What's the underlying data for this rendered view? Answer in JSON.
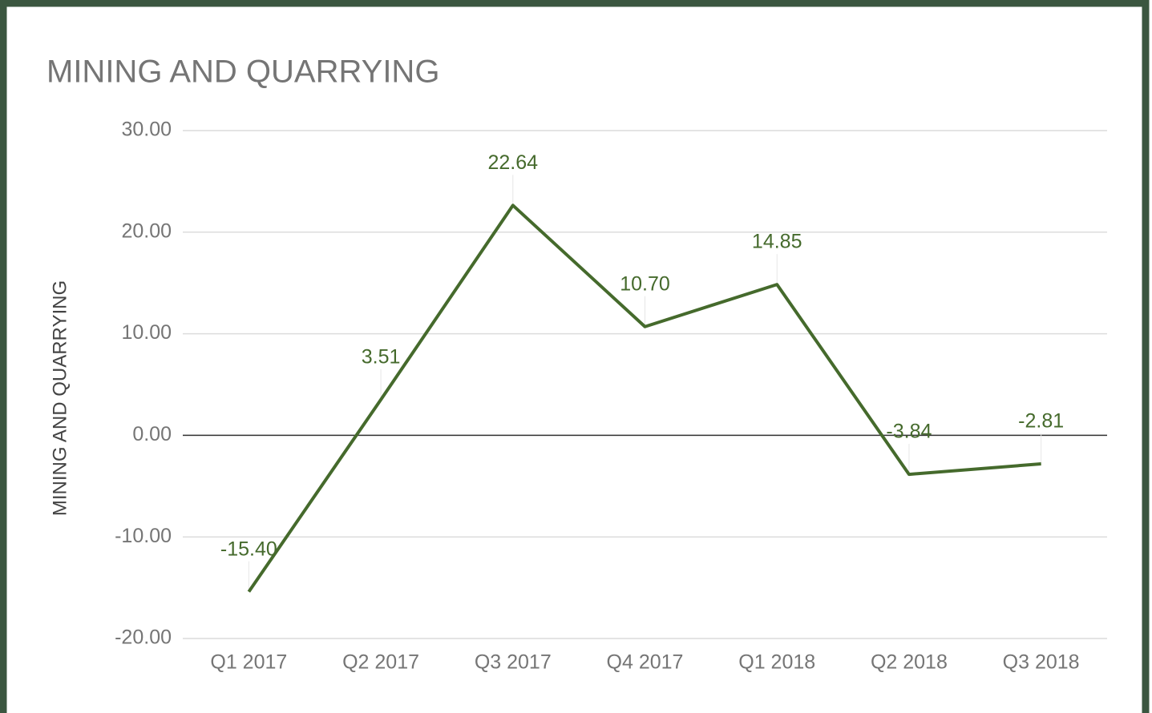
{
  "chart_data": {
    "type": "line",
    "title": "MINING AND QUARRYING",
    "y_label": "MINING AND QUARRYING",
    "categories": [
      "Q1 2017",
      "Q2 2017",
      "Q3 2017",
      "Q4 2017",
      "Q1 2018",
      "Q2 2018",
      "Q3 2018"
    ],
    "series": [
      {
        "name": "MINING AND QUARRYING",
        "color": "#456a2c",
        "values": [
          -15.4,
          3.51,
          22.64,
          10.7,
          14.85,
          -3.84,
          -2.81
        ],
        "value_labels": [
          "-15.40",
          "3.51",
          "22.64",
          "10.70",
          "14.85",
          "-3.84",
          "-2.81"
        ]
      }
    ],
    "ylim": [
      -20,
      30
    ],
    "yticks": [
      {
        "value": -20,
        "label": "-20.00"
      },
      {
        "value": -10,
        "label": "-10.00"
      },
      {
        "value": 0,
        "label": "0.00"
      },
      {
        "value": 10,
        "label": "10.00"
      },
      {
        "value": 20,
        "label": "20.00"
      },
      {
        "value": 30,
        "label": "30.00"
      }
    ],
    "grid": true
  }
}
